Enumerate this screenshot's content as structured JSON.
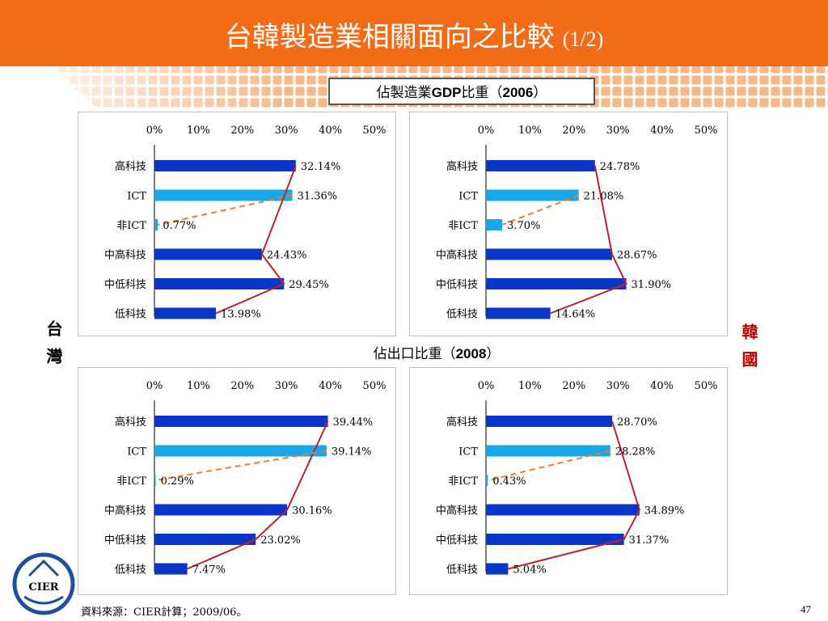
{
  "slide": {
    "title": "台韓製造業相關面向之比較",
    "title_suffix": "(1/2)",
    "section1_prefix": "佔製造業",
    "section1_bold": "GDP",
    "section1_mid": "比重（",
    "section1_year": "2006",
    "section1_end": "）",
    "section2_prefix": "佔出口比重（",
    "section2_year": "2008",
    "section2_end": "）",
    "side_left": "台灣",
    "side_right": "韓國",
    "source": "資料來源：CIER計算；2009/06。",
    "page_number": "47",
    "logo_text": "CIER"
  },
  "colors": {
    "header": "#f26b16",
    "bar_dark": "#0a36c8",
    "bar_light": "#16a8e8",
    "line_solid": "#c0202a",
    "line_dashed": "#f07a2a"
  },
  "chart_data": [
    {
      "id": "tw-gdp",
      "type": "bar",
      "orientation": "horizontal",
      "categories": [
        "高科技",
        "ICT",
        "非ICT",
        "中高科技",
        "中低科技",
        "低科技"
      ],
      "values": [
        32.14,
        31.36,
        0.77,
        24.43,
        29.45,
        13.98
      ],
      "labels": [
        "32.14%",
        "31.36%",
        "0.77%",
        "24.43%",
        "29.45%",
        "13.98%"
      ],
      "xlim": [
        0,
        50
      ],
      "xticks": [
        "0%",
        "10%",
        "20%",
        "30%",
        "40%",
        "50%"
      ]
    },
    {
      "id": "kr-gdp",
      "type": "bar",
      "orientation": "horizontal",
      "categories": [
        "高科技",
        "ICT",
        "非ICT",
        "中高科技",
        "中低科技",
        "低科技"
      ],
      "values": [
        24.78,
        21.08,
        3.7,
        28.67,
        31.9,
        14.64
      ],
      "labels": [
        "24.78%",
        "21.08%",
        "3.70%",
        "28.67%",
        "31.90%",
        "14.64%"
      ],
      "xlim": [
        0,
        50
      ],
      "xticks": [
        "0%",
        "10%",
        "20%",
        "30%",
        "40%",
        "50%"
      ]
    },
    {
      "id": "tw-exp",
      "type": "bar",
      "orientation": "horizontal",
      "categories": [
        "高科技",
        "ICT",
        "非ICT",
        "中高科技",
        "中低科技",
        "低科技"
      ],
      "values": [
        39.44,
        39.14,
        0.29,
        30.16,
        23.02,
        7.47
      ],
      "labels": [
        "39.44%",
        "39.14%",
        "0.29%",
        "30.16%",
        "23.02%",
        "7.47%"
      ],
      "xlim": [
        0,
        50
      ],
      "xticks": [
        "0%",
        "10%",
        "20%",
        "30%",
        "40%",
        "50%"
      ]
    },
    {
      "id": "kr-exp",
      "type": "bar",
      "orientation": "horizontal",
      "categories": [
        "高科技",
        "ICT",
        "非ICT",
        "中高科技",
        "中低科技",
        "低科技"
      ],
      "values": [
        28.7,
        28.28,
        0.43,
        34.89,
        31.37,
        5.04
      ],
      "labels": [
        "28.70%",
        "28.28%",
        "0.43%",
        "34.89%",
        "31.37%",
        "5.04%"
      ],
      "xlim": [
        0,
        50
      ],
      "xticks": [
        "0%",
        "10%",
        "20%",
        "30%",
        "40%",
        "50%"
      ]
    }
  ]
}
